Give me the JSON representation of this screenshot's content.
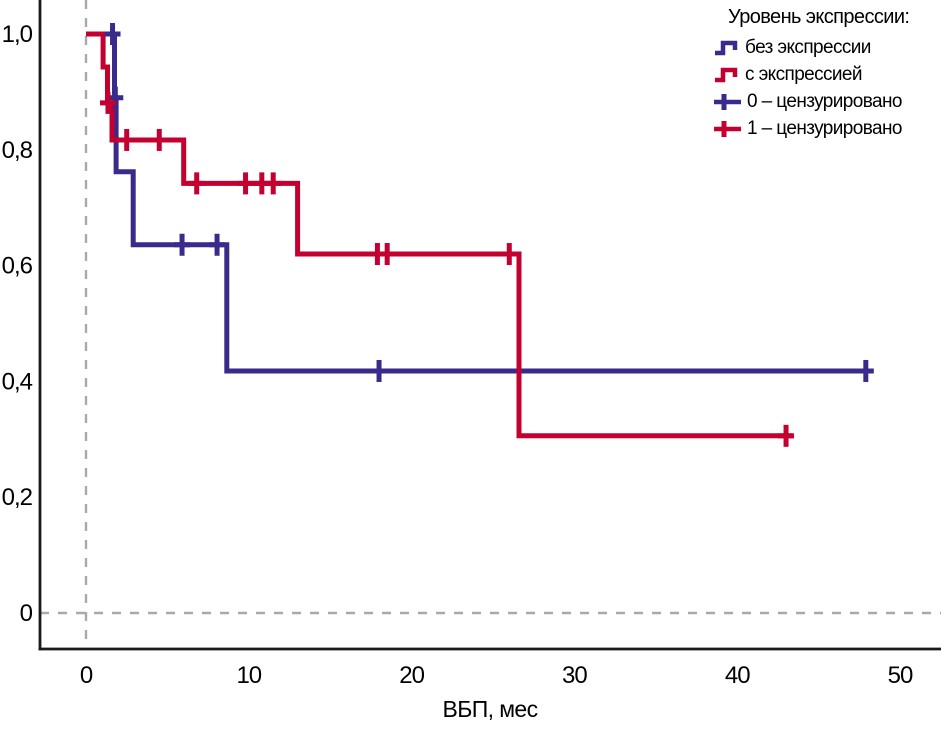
{
  "chart_data": {
    "type": "line",
    "subtype": "kaplan-meier-step",
    "title": "",
    "xlabel": "ВБП, мес",
    "ylabel": "",
    "x_axis": {
      "ticks": [
        {
          "label": "0",
          "value": 0
        },
        {
          "label": "10",
          "value": 10
        },
        {
          "label": "20",
          "value": 20
        },
        {
          "label": "30",
          "value": 30
        },
        {
          "label": "40",
          "value": 40
        },
        {
          "label": "50",
          "value": 50
        }
      ],
      "range_months": [
        0,
        50
      ]
    },
    "y_axis": {
      "ticks": [
        {
          "label": "1,0",
          "value": 1.0
        },
        {
          "label": "0,8",
          "value": 0.8
        },
        {
          "label": "0,6",
          "value": 0.6
        },
        {
          "label": "0,4",
          "value": 0.4
        },
        {
          "label": "0,2",
          "value": 0.2
        },
        {
          "label": "0",
          "value": 0
        }
      ],
      "range": [
        0,
        1.0
      ]
    },
    "grid": {
      "zero_x_dashed_line": true,
      "zero_y_dashed_line": true,
      "dash_color": "#a9a9a9"
    },
    "series": [
      {
        "name": "без экспрессии",
        "color": "#3a2a8c",
        "steps": [
          [
            0,
            1.0
          ],
          [
            1.75,
            1.0
          ],
          [
            1.75,
            0.89
          ],
          [
            1.85,
            0.89
          ],
          [
            1.85,
            0.762
          ],
          [
            2.9,
            0.762
          ],
          [
            2.9,
            0.636
          ],
          [
            8.65,
            0.636
          ],
          [
            8.65,
            0.418
          ],
          [
            48.2,
            0.418
          ]
        ],
        "censored": [
          [
            1.63,
            1.0
          ],
          [
            1.8,
            0.89
          ],
          [
            5.9,
            0.636
          ],
          [
            8.05,
            0.636
          ],
          [
            18.0,
            0.418
          ],
          [
            47.9,
            0.418
          ]
        ]
      },
      {
        "name": "с экспрессией",
        "color": "#c3002f",
        "steps": [
          [
            0,
            1.0
          ],
          [
            1.05,
            1.0
          ],
          [
            1.05,
            0.943
          ],
          [
            1.32,
            0.943
          ],
          [
            1.32,
            0.881
          ],
          [
            1.6,
            0.881
          ],
          [
            1.6,
            0.817
          ],
          [
            6.0,
            0.817
          ],
          [
            6.0,
            0.742
          ],
          [
            13.0,
            0.742
          ],
          [
            13.0,
            0.62
          ],
          [
            26.6,
            0.62
          ],
          [
            26.6,
            0.306
          ],
          [
            43.4,
            0.306
          ]
        ],
        "censored": [
          [
            1.35,
            0.881
          ],
          [
            2.5,
            0.817
          ],
          [
            4.5,
            0.817
          ],
          [
            6.8,
            0.742
          ],
          [
            9.8,
            0.742
          ],
          [
            10.8,
            0.742
          ],
          [
            11.5,
            0.742
          ],
          [
            17.9,
            0.62
          ],
          [
            18.5,
            0.62
          ],
          [
            26.0,
            0.62
          ],
          [
            43.0,
            0.306
          ]
        ]
      }
    ],
    "legend": {
      "position": "top-right",
      "title": "Уровень экспрессии:",
      "items": [
        {
          "label": "без экспрессии",
          "type": "step",
          "color": "#3a2a8c"
        },
        {
          "label": "с экспрессией",
          "type": "step",
          "color": "#c3002f"
        },
        {
          "label": "0 – цензурировано",
          "type": "cross",
          "color": "#3a2a8c"
        },
        {
          "label": "1 – цензурировано",
          "type": "cross",
          "color": "#c3002f"
        }
      ]
    },
    "axis_color": "#1a1a1a",
    "tick_label_color": "#000000"
  }
}
